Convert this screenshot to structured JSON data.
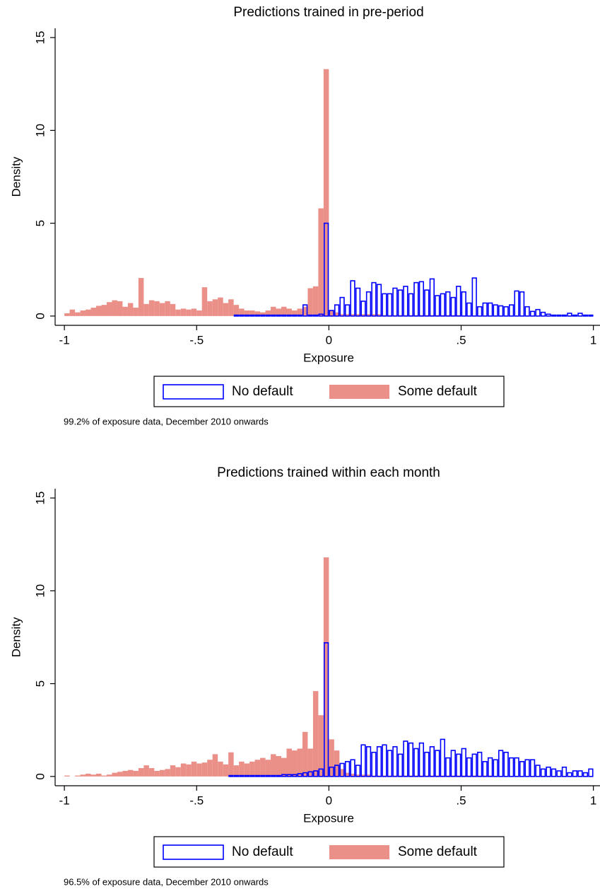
{
  "chart_data": [
    {
      "type": "histogram",
      "title": "Predictions trained in pre-period",
      "xlabel": "Exposure",
      "ylabel": "Density",
      "note": "99.2% of exposure data, December 2010 onwards",
      "bins": [
        -1,
        -0.98,
        -0.96,
        -0.94,
        -0.92,
        -0.9,
        -0.88,
        -0.86,
        -0.84,
        -0.82,
        -0.8,
        -0.78,
        -0.76,
        -0.74,
        -0.72,
        -0.7,
        -0.68,
        -0.66,
        -0.64,
        -0.62,
        -0.6,
        -0.58,
        -0.56,
        -0.54,
        -0.52,
        -0.5,
        -0.48,
        -0.46,
        -0.44,
        -0.42,
        -0.4,
        -0.38,
        -0.36,
        -0.34,
        -0.32,
        -0.3,
        -0.28,
        -0.26,
        -0.24,
        -0.22,
        -0.2,
        -0.18,
        -0.16,
        -0.14,
        -0.12,
        -0.1,
        -0.08,
        -0.06,
        -0.04,
        -0.02,
        0,
        0.02,
        0.04,
        0.06,
        0.08,
        0.1,
        0.12,
        0.14,
        0.16,
        0.18,
        0.2,
        0.22,
        0.24,
        0.26,
        0.28,
        0.3,
        0.32,
        0.34,
        0.36,
        0.38,
        0.4,
        0.42,
        0.44,
        0.46,
        0.48,
        0.5,
        0.52,
        0.54,
        0.56,
        0.58,
        0.6,
        0.62,
        0.64,
        0.66,
        0.68,
        0.7,
        0.72,
        0.74,
        0.76,
        0.78,
        0.8,
        0.82,
        0.84,
        0.86,
        0.88,
        0.9,
        0.92,
        0.94,
        0.96,
        0.98,
        1
      ],
      "series": [
        {
          "name": "Some default",
          "color": "#ea9088",
          "fill": true,
          "values": [
            0.15,
            0.35,
            0.2,
            0.3,
            0.35,
            0.45,
            0.55,
            0.6,
            0.75,
            0.85,
            0.8,
            0.5,
            0.7,
            0.45,
            2.05,
            0.65,
            0.85,
            0.8,
            0.7,
            0.8,
            0.65,
            0.35,
            0.4,
            0.35,
            0.4,
            0.3,
            1.55,
            0.8,
            0.9,
            1.0,
            0.7,
            0.9,
            0.6,
            0.4,
            0.3,
            0.3,
            0.25,
            0.2,
            0.3,
            0.5,
            0.4,
            0.5,
            0.4,
            0.3,
            0.4,
            0.5,
            1.5,
            1.6,
            5.8,
            13.3,
            0.3,
            0.2,
            0.1,
            0.1,
            0.1,
            0.1,
            0.1,
            0.1,
            0.1,
            0.1,
            0.05,
            0.05,
            0.05,
            0.05,
            0.05,
            0.05,
            0.05,
            0.05,
            0.05,
            0.05,
            0.05,
            0.05,
            0.05,
            0.05,
            0.05,
            0,
            0,
            0,
            0,
            0,
            0,
            0,
            0,
            0,
            0,
            0,
            0,
            0,
            0,
            0,
            0,
            0,
            0,
            0,
            0,
            0,
            0,
            0,
            0,
            0
          ]
        },
        {
          "name": "No default",
          "color": "#0000ff",
          "fill": false,
          "values": [
            0,
            0,
            0,
            0,
            0,
            0,
            0,
            0,
            0,
            0,
            0,
            0,
            0,
            0,
            0,
            0,
            0,
            0,
            0,
            0,
            0,
            0,
            0,
            0,
            0,
            0,
            0,
            0,
            0,
            0,
            0,
            0,
            0.05,
            0.05,
            0.05,
            0.05,
            0.05,
            0.05,
            0.05,
            0.05,
            0.05,
            0.05,
            0.05,
            0.05,
            0.05,
            0.6,
            0.05,
            0.05,
            0.1,
            5.0,
            0.3,
            0.6,
            1.0,
            0.6,
            1.9,
            1.5,
            0.8,
            1.3,
            1.8,
            1.7,
            1.2,
            1.2,
            1.5,
            1.4,
            1.6,
            1.2,
            1.8,
            1.85,
            1.4,
            2.0,
            1.1,
            1.2,
            1.3,
            1.0,
            1.6,
            1.3,
            0.7,
            2.05,
            0.5,
            0.7,
            0.7,
            0.6,
            0.55,
            0.5,
            0.6,
            1.35,
            1.3,
            0.5,
            0.25,
            0.35,
            0.2,
            0.1,
            0.05,
            0.05,
            0.05,
            0.15,
            0.05,
            0.15,
            0.05,
            0.05
          ]
        }
      ],
      "xlim": [
        -1.035,
        1.025
      ],
      "ylim": [
        -0.5,
        15.5
      ],
      "xticks": [
        -1,
        {
          "value": -0.5,
          "label": "-.5"
        },
        0,
        {
          "value": 0.5,
          "label": ".5"
        },
        1
      ],
      "yticks": [
        0,
        5,
        10,
        15
      ],
      "legend": "bottom"
    },
    {
      "type": "histogram",
      "title": "Predictions trained within each month",
      "xlabel": "Exposure",
      "ylabel": "Density",
      "note": "96.5% of exposure data, December 2010 onwards",
      "bins": [
        -1,
        -0.98,
        -0.96,
        -0.94,
        -0.92,
        -0.9,
        -0.88,
        -0.86,
        -0.84,
        -0.82,
        -0.8,
        -0.78,
        -0.76,
        -0.74,
        -0.72,
        -0.7,
        -0.68,
        -0.66,
        -0.64,
        -0.62,
        -0.6,
        -0.58,
        -0.56,
        -0.54,
        -0.52,
        -0.5,
        -0.48,
        -0.46,
        -0.44,
        -0.42,
        -0.4,
        -0.38,
        -0.36,
        -0.34,
        -0.32,
        -0.3,
        -0.28,
        -0.26,
        -0.24,
        -0.22,
        -0.2,
        -0.18,
        -0.16,
        -0.14,
        -0.12,
        -0.1,
        -0.08,
        -0.06,
        -0.04,
        -0.02,
        0,
        0.02,
        0.04,
        0.06,
        0.08,
        0.1,
        0.12,
        0.14,
        0.16,
        0.18,
        0.2,
        0.22,
        0.24,
        0.26,
        0.28,
        0.3,
        0.32,
        0.34,
        0.36,
        0.38,
        0.4,
        0.42,
        0.44,
        0.46,
        0.48,
        0.5,
        0.52,
        0.54,
        0.56,
        0.58,
        0.6,
        0.62,
        0.64,
        0.66,
        0.68,
        0.7,
        0.72,
        0.74,
        0.76,
        0.78,
        0.8,
        0.82,
        0.84,
        0.86,
        0.88,
        0.9,
        0.92,
        0.94,
        0.96,
        0.98,
        1
      ],
      "series": [
        {
          "name": "Some default",
          "color": "#ea9088",
          "fill": true,
          "values": [
            0.05,
            0,
            0.05,
            0.1,
            0.15,
            0.1,
            0.15,
            0.05,
            0.1,
            0.2,
            0.25,
            0.3,
            0.35,
            0.3,
            0.45,
            0.6,
            0.45,
            0.3,
            0.35,
            0.4,
            0.6,
            0.5,
            0.7,
            0.65,
            0.8,
            0.7,
            0.75,
            0.9,
            1.2,
            0.8,
            0.65,
            1.3,
            0.6,
            0.8,
            0.7,
            0.8,
            0.9,
            1.0,
            0.9,
            1.2,
            1.1,
            1.0,
            1.5,
            1.4,
            1.5,
            2.4,
            1.5,
            4.6,
            3.3,
            11.8,
            2.0,
            1.4,
            0.4,
            0.2,
            0.15,
            0.1,
            0.1,
            0.1,
            0.05,
            0.05,
            0.05,
            0.05,
            0.05,
            0.05,
            0.05,
            0.05,
            0.05,
            0.05,
            0.05,
            0.05,
            0.05,
            0.05,
            0.05,
            0.05,
            0.05,
            0.05,
            0.05,
            0.05,
            0.05,
            0.05,
            0.05,
            0,
            0,
            0,
            0,
            0,
            0,
            0,
            0,
            0,
            0,
            0,
            0,
            0,
            0,
            0,
            0,
            0,
            0,
            0
          ]
        },
        {
          "name": "No default",
          "color": "#0000ff",
          "fill": false,
          "values": [
            0,
            0,
            0,
            0,
            0,
            0,
            0,
            0,
            0,
            0,
            0,
            0,
            0,
            0,
            0,
            0,
            0,
            0,
            0,
            0,
            0,
            0,
            0,
            0,
            0,
            0,
            0,
            0,
            0,
            0,
            0,
            0.05,
            0.05,
            0.05,
            0.05,
            0.05,
            0.05,
            0.05,
            0.05,
            0.05,
            0.05,
            0.1,
            0.1,
            0.1,
            0.15,
            0.2,
            0.25,
            0.3,
            0.4,
            7.2,
            0.5,
            0.6,
            0.7,
            0.8,
            0.9,
            0.6,
            1.7,
            1.6,
            1.3,
            1.6,
            1.7,
            1.4,
            1.6,
            1.2,
            1.9,
            1.8,
            1.5,
            1.8,
            1.3,
            1.6,
            1.4,
            2.0,
            1.0,
            1.4,
            1.2,
            1.5,
            1.0,
            1.2,
            1.3,
            0.8,
            1.0,
            0.9,
            1.4,
            1.3,
            1.0,
            1.0,
            0.8,
            0.9,
            0.9,
            0.6,
            0.4,
            0.5,
            0.4,
            0.3,
            0.5,
            0.2,
            0.3,
            0.3,
            0.2,
            0.4
          ]
        }
      ],
      "xlim": [
        -1.035,
        1.025
      ],
      "ylim": [
        -0.5,
        15.5
      ],
      "xticks": [
        -1,
        {
          "value": -0.5,
          "label": "-.5"
        },
        0,
        {
          "value": 0.5,
          "label": ".5"
        },
        1
      ],
      "yticks": [
        0,
        5,
        10,
        15
      ],
      "legend": "bottom"
    }
  ]
}
